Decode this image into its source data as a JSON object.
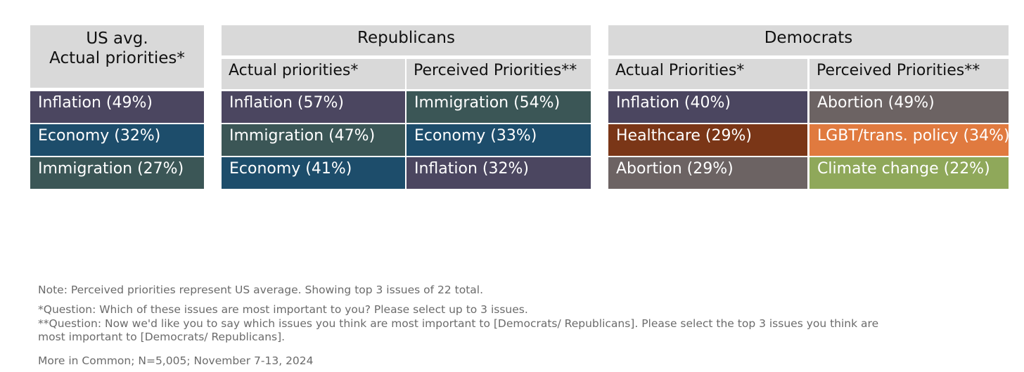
{
  "chart_data": {
    "type": "table",
    "colors": {
      "Inflation": "#4b4660",
      "Economy": "#1d4d6b",
      "Immigration": "#3b5656",
      "Abortion": "#6c6363",
      "Healthcare": "#7a3617",
      "LGBT/trans. policy": "#e07a3f",
      "Climate change": "#8fa85a",
      "header_bg": "#d9d9d9"
    },
    "us_avg": {
      "title": "US avg.\nActual priorities*",
      "rows": [
        {
          "label": "Inflation (49%)",
          "issue": "Inflation",
          "value": 49
        },
        {
          "label": "Economy (32%)",
          "issue": "Economy",
          "value": 32
        },
        {
          "label": "Immigration (27%)",
          "issue": "Immigration",
          "value": 27
        }
      ]
    },
    "republicans": {
      "title": "Republicans",
      "actual": {
        "header": "Actual priorities*",
        "rows": [
          {
            "label": "Inflation (57%)",
            "issue": "Inflation",
            "value": 57
          },
          {
            "label": "Immigration (47%)",
            "issue": "Immigration",
            "value": 47
          },
          {
            "label": "Economy (41%)",
            "issue": "Economy",
            "value": 41
          }
        ]
      },
      "perceived": {
        "header": "Perceived Priorities**",
        "rows": [
          {
            "label": "Immigration (54%)",
            "issue": "Immigration",
            "value": 54
          },
          {
            "label": "Economy (33%)",
            "issue": "Economy",
            "value": 33
          },
          {
            "label": "Inflation (32%)",
            "issue": "Inflation",
            "value": 32
          }
        ]
      }
    },
    "democrats": {
      "title": "Democrats",
      "actual": {
        "header": "Actual Priorities*",
        "rows": [
          {
            "label": "Inflation (40%)",
            "issue": "Inflation",
            "value": 40
          },
          {
            "label": "Healthcare (29%)",
            "issue": "Healthcare",
            "value": 29
          },
          {
            "label": "Abortion (29%)",
            "issue": "Abortion",
            "value": 29
          }
        ]
      },
      "perceived": {
        "header": "Perceived Priorities**",
        "rows": [
          {
            "label": "Abortion (49%)",
            "issue": "Abortion",
            "value": 49
          },
          {
            "label": "LGBT/trans. policy (34%)",
            "issue": "LGBT/trans. policy",
            "value": 34
          },
          {
            "label": "Climate change (22%)",
            "issue": "Climate change",
            "value": 22
          }
        ]
      }
    }
  },
  "notes": {
    "note": "Note: Perceived priorities represent US average. Showing top 3 issues of 22 total.",
    "q1": "*Question: Which of these issues are most important to you? Please select up to 3 issues.",
    "q2_line1": "**Question: Now we'd like you to say which issues you think are most important to [Democrats/ Republicans]. Please select the top 3 issues you think are",
    "q2_line2": "most important to [Democrats/ Republicans].",
    "source": "More in Common; N=5,005; November 7-13, 2024"
  }
}
